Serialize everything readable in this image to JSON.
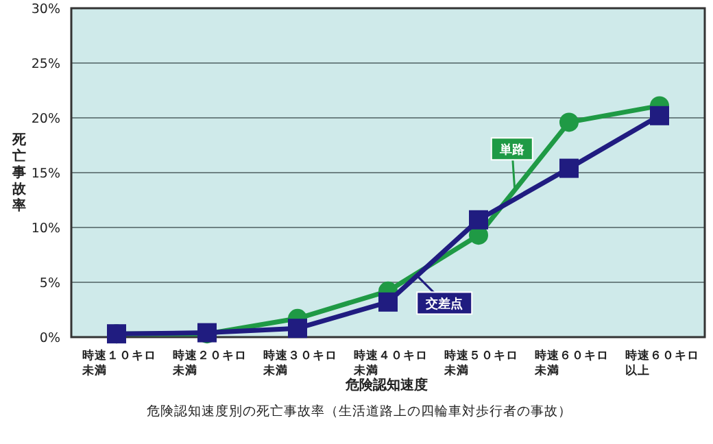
{
  "chart_data": {
    "type": "line",
    "title": "危険認知速度別の死亡事故率（生活道路上の四輪車対歩行者の事故）",
    "xlabel": "危険認知速度",
    "ylabel": "死亡事故率",
    "categories": [
      "時速１０キロ未満",
      "時速２０キロ未満",
      "時速３０キロ未満",
      "時速４０キロ未満",
      "時速５０キロ未満",
      "時速６０キロ未満",
      "時速６０キロ以上"
    ],
    "series": [
      {
        "name": "単路",
        "color": "#1f9a45",
        "marker": "circle",
        "values": [
          0.3,
          0.3,
          1.7,
          4.2,
          9.3,
          19.6,
          21.1
        ]
      },
      {
        "name": "交差点",
        "color": "#201c80",
        "marker": "square",
        "values": [
          0.3,
          0.4,
          0.8,
          3.2,
          10.7,
          15.4,
          20.2
        ]
      }
    ],
    "ylim": [
      0,
      30
    ],
    "yticks": [
      {
        "value": 0,
        "label": "0%"
      },
      {
        "value": 5,
        "label": "5%"
      },
      {
        "value": 10,
        "label": "10%"
      },
      {
        "value": 15,
        "label": "15%"
      },
      {
        "value": 20,
        "label": "20%"
      },
      {
        "value": 25,
        "label": "25%"
      },
      {
        "value": 30,
        "label": "30%"
      }
    ],
    "grid": "y",
    "legend": "center",
    "line_style": "solid"
  }
}
